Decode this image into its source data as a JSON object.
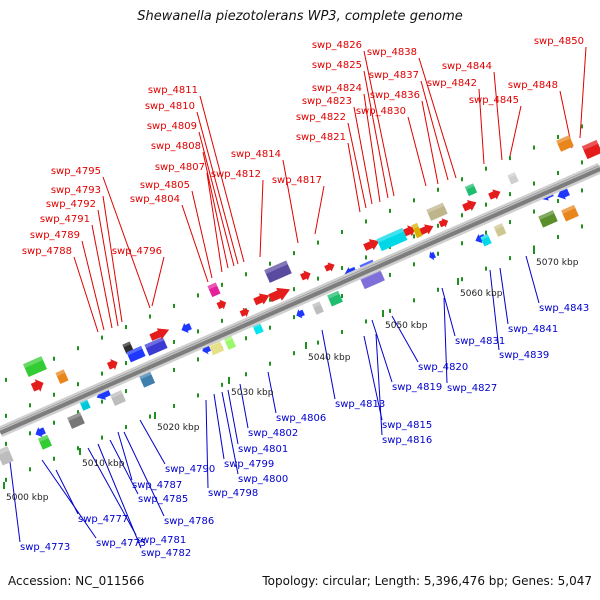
{
  "header": {
    "title": "Shewanella piezotolerans WP3, complete genome"
  },
  "footer": {
    "accession": "Accession: NC_011566",
    "summary": "Topology: circular; Length: 5,396,476 bp; Genes: 5,047"
  },
  "colors": {
    "forward_label": "#e00000",
    "reverse_label": "#0000cc",
    "backbone": "#8c8c8c"
  },
  "scale_labels": [
    "5000 kbp",
    "5010 kbp",
    "5020 kbp",
    "5030 kbp",
    "5040 kbp",
    "5050 kbp",
    "5060 kbp",
    "5070 kbp"
  ],
  "forward_genes": [
    "swp_4788",
    "swp_4789",
    "swp_4791",
    "swp_4792",
    "swp_4793",
    "swp_4795",
    "swp_4796",
    "swp_4804",
    "swp_4805",
    "swp_4807",
    "swp_4808",
    "swp_4809",
    "swp_4810",
    "swp_4811",
    "swp_4812",
    "swp_4814",
    "swp_4817",
    "swp_4821",
    "swp_4822",
    "swp_4823",
    "swp_4824",
    "swp_4825",
    "swp_4826",
    "swp_4830",
    "swp_4836",
    "swp_4837",
    "swp_4838",
    "swp_4842",
    "swp_4844",
    "swp_4845",
    "swp_4848",
    "swp_4850"
  ],
  "reverse_genes": [
    "swp_4773",
    "swp_4775",
    "swp_4777",
    "swp_4781",
    "swp_4782",
    "swp_4785",
    "swp_4786",
    "swp_4787",
    "swp_4790",
    "swp_4798",
    "swp_4799",
    "swp_4800",
    "swp_4801",
    "swp_4802",
    "swp_4806",
    "swp_4813",
    "swp_4815",
    "swp_4816",
    "swp_4819",
    "swp_4820",
    "swp_4827",
    "swp_4831",
    "swp_4839",
    "swp_4841",
    "swp_4843"
  ]
}
